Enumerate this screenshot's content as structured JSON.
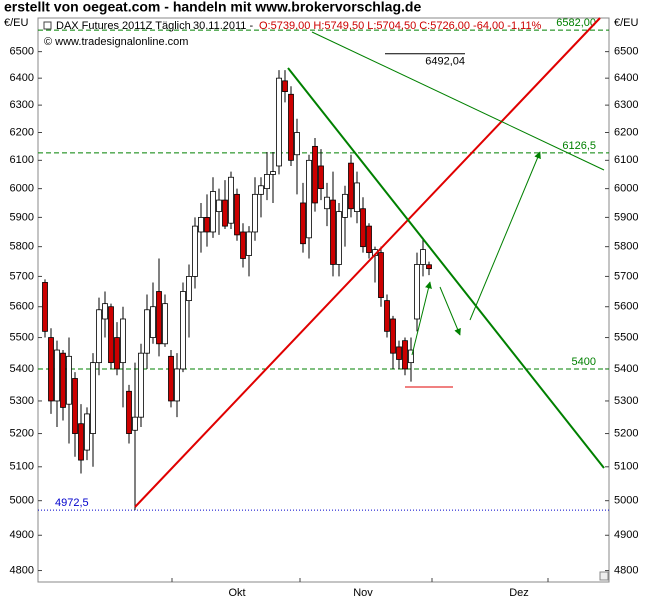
{
  "chart_data": {
    "type": "candlestick",
    "title": "erstellt von oegeat.com - handeln mit www.brokervorschlag.de",
    "info": {
      "instrument": "DAX Futures 2011Z Täglich",
      "date": "30.11.2011 -",
      "ohlc": "O:5739,00 H:5749,50 L:5704,50 C:5726,00 -64,00 -1,11%"
    },
    "copyright": "© www.tradesignalonline.com",
    "y_label": "€/EU",
    "log_scale": true,
    "ylim": [
      4768,
      6629
    ],
    "yticks": [
      4800,
      4900,
      5000,
      5100,
      5200,
      5300,
      5400,
      5500,
      5600,
      5700,
      5800,
      5900,
      6000,
      6100,
      6200,
      6300,
      6400,
      6500
    ],
    "up_color": "#ffffff",
    "down_color": "#cc0000",
    "categories": [
      null,
      null,
      null,
      null,
      null,
      null,
      null,
      null,
      null,
      null,
      null,
      null,
      null,
      null,
      null,
      null,
      null,
      null,
      null,
      null,
      null,
      null,
      null,
      null,
      null,
      null,
      null,
      null,
      null,
      null,
      null,
      null,
      "Okt",
      null,
      null,
      null,
      null,
      null,
      null,
      null,
      null,
      null,
      null,
      null,
      null,
      null,
      null,
      null,
      null,
      null,
      null,
      null,
      null,
      "Nov",
      null,
      null,
      null,
      null,
      null,
      null,
      null,
      null,
      null,
      null,
      null,
      null,
      null,
      null,
      null,
      null,
      null,
      null,
      null,
      null,
      null,
      null,
      null,
      null,
      null,
      "Dez",
      null,
      null,
      null,
      null,
      null,
      null,
      null,
      null,
      null,
      null,
      null,
      null,
      null,
      null
    ],
    "open": [
      5680,
      5500,
      5300,
      5450,
      5290,
      5370,
      5230,
      5150,
      5200,
      5420,
      5560,
      5600,
      5500,
      5420,
      5330,
      5210,
      5250,
      5450,
      5500,
      5650,
      5480,
      5440,
      5300,
      5400,
      5620,
      5700,
      5850,
      5900,
      5850,
      5920,
      5960,
      5880,
      5980,
      5850,
      5770,
      5850,
      5980,
      6000,
      6050,
      6080,
      6390,
      6340,
      6120,
      5950,
      5830,
      6150,
      6080,
      5930,
      5960,
      5740,
      5900,
      6090,
      5920,
      5930,
      5870,
      5770,
      5780,
      5620,
      5560,
      5470,
      5490,
      5420,
      5560,
      5740,
      5739,
      null,
      null,
      null,
      null,
      null,
      null,
      null,
      null,
      null,
      null,
      null,
      null,
      null,
      null,
      null,
      null,
      null,
      null,
      null,
      null,
      null,
      null,
      null,
      null,
      null,
      null,
      null,
      null,
      null
    ],
    "high": [
      5690,
      5530,
      5490,
      5460,
      5500,
      5390,
      5290,
      5280,
      5450,
      5630,
      5650,
      5610,
      5550,
      5600,
      5350,
      5420,
      5480,
      5640,
      5680,
      5760,
      5640,
      5460,
      5450,
      5680,
      5740,
      5900,
      5950,
      5980,
      6040,
      6000,
      6030,
      6060,
      6000,
      5880,
      5870,
      6040,
      6040,
      6130,
      6130,
      6430,
      6430,
      6370,
      6250,
      6020,
      6120,
      6180,
      6140,
      6020,
      6060,
      5950,
      6010,
      6120,
      6060,
      5970,
      5880,
      5800,
      5800,
      5640,
      5570,
      5490,
      5500,
      5500,
      5780,
      5830,
      5749.5,
      null,
      null,
      null,
      null,
      null,
      null,
      null,
      null,
      null,
      null,
      null,
      null,
      null,
      null,
      null,
      null,
      null,
      null,
      null,
      null,
      null,
      null,
      null,
      null,
      null,
      null,
      null,
      null,
      null
    ],
    "low": [
      5500,
      5260,
      5220,
      5240,
      5170,
      5130,
      5080,
      5120,
      5100,
      5380,
      5500,
      5400,
      5380,
      5280,
      5170,
      4972.5,
      5220,
      5400,
      5480,
      5440,
      5470,
      5280,
      5250,
      5390,
      5500,
      5660,
      5780,
      5800,
      5830,
      5840,
      5860,
      5860,
      5820,
      5730,
      5700,
      5820,
      5900,
      5960,
      5950,
      6050,
      6310,
      6080,
      5980,
      5780,
      5760,
      5920,
      5960,
      5870,
      5700,
      5700,
      5800,
      5900,
      5880,
      5780,
      5760,
      5680,
      5600,
      5500,
      5400,
      5400,
      5380,
      5360,
      5520,
      5700,
      5704.5,
      null,
      null,
      null,
      null,
      null,
      null,
      null,
      null,
      null,
      null,
      null,
      null,
      null,
      null,
      null,
      null,
      null,
      null,
      null,
      null,
      null,
      null,
      null,
      null,
      null,
      null,
      null,
      null,
      null
    ],
    "close": [
      5520,
      5300,
      5460,
      5280,
      5440,
      5200,
      5120,
      5260,
      5420,
      5590,
      5610,
      5420,
      5400,
      5560,
      5200,
      5250,
      5450,
      5590,
      5600,
      5480,
      5610,
      5300,
      5400,
      5650,
      5700,
      5870,
      5900,
      5850,
      5990,
      5960,
      5870,
      6040,
      5840,
      5760,
      5850,
      5980,
      6010,
      6050,
      6060,
      6400,
      6350,
      6100,
      6200,
      5810,
      6100,
      5950,
      6000,
      5970,
      5740,
      5920,
      5980,
      5930,
      6020,
      5800,
      5780,
      5790,
      5630,
      5520,
      5450,
      5430,
      5400,
      5460,
      5740,
      5790,
      5726,
      null,
      null,
      null,
      null,
      null,
      null,
      null,
      null,
      null,
      null,
      null,
      null,
      null,
      null,
      null,
      null,
      null,
      null,
      null,
      null,
      null,
      null,
      null,
      null,
      null,
      null,
      null,
      null,
      null
    ],
    "levels": [
      {
        "value": 6582,
        "label": "6582,00",
        "color": "#008000",
        "style": "dashed"
      },
      {
        "value": 6492.04,
        "label": "6492,04",
        "color": "#000000",
        "style": "segment"
      },
      {
        "value": 6126.5,
        "label": "6126,5",
        "color": "#008000",
        "style": "dashed"
      },
      {
        "value": 5400,
        "color": "#008000",
        "style": "dashed"
      },
      {
        "value": 4972.5,
        "label": "4972,5",
        "color": "#0000cc",
        "style": "dotted"
      }
    ]
  }
}
